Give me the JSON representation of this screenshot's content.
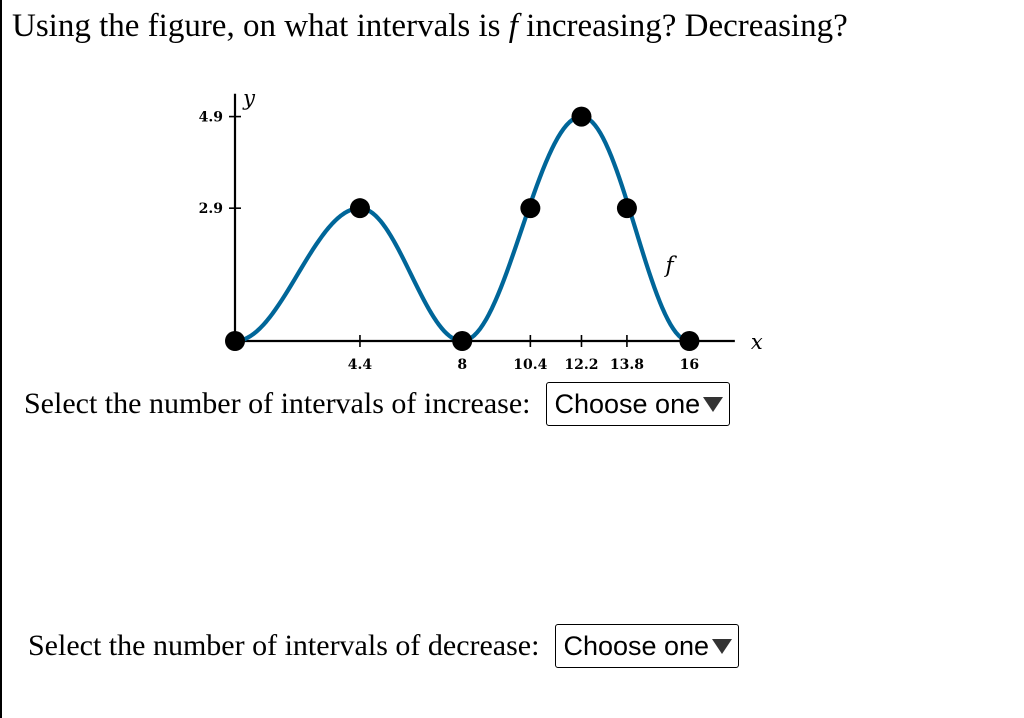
{
  "question": {
    "prefix": "Using the figure, on what intervals is ",
    "function_name": "f",
    "suffix": " increasing? Decreasing?"
  },
  "chart_data": {
    "type": "line",
    "xlabel": "x",
    "ylabel": "y",
    "curve_label": "f",
    "x_ticks": [
      4.4,
      8,
      10.4,
      12.2,
      13.8,
      16
    ],
    "x_tick_labels": [
      "4.4",
      "8",
      "10.4",
      "12.2",
      "13.8",
      "16"
    ],
    "y_ticks": [
      2.9,
      4.9
    ],
    "y_tick_labels": [
      "2.9",
      "4.9"
    ],
    "xlim": [
      0,
      17.6
    ],
    "ylim": [
      0,
      5.5
    ],
    "points": [
      {
        "x": 0,
        "y": 0
      },
      {
        "x": 4.4,
        "y": 2.9
      },
      {
        "x": 8,
        "y": 0
      },
      {
        "x": 10.4,
        "y": 2.9
      },
      {
        "x": 12.2,
        "y": 4.9
      },
      {
        "x": 13.8,
        "y": 2.9
      },
      {
        "x": 16,
        "y": 0
      }
    ],
    "series_color": "#006699"
  },
  "increase": {
    "label": "Select the number of intervals of increase:",
    "selected": "Choose one"
  },
  "decrease": {
    "label": "Select the number of intervals of decrease:",
    "selected": "Choose one"
  }
}
